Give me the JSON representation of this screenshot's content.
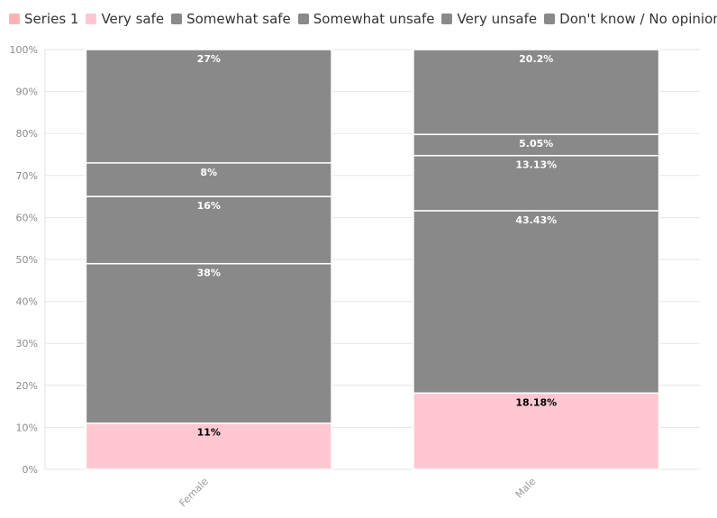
{
  "chart_data": {
    "type": "bar",
    "stacked": true,
    "categories": [
      "Female",
      "Male"
    ],
    "ylim": [
      0,
      100
    ],
    "y_ticks": [
      "0%",
      "10%",
      "20%",
      "30%",
      "40%",
      "50%",
      "60%",
      "70%",
      "80%",
      "90%",
      "100%"
    ],
    "grid": true,
    "legend_position": "top-left",
    "series": [
      {
        "name": "Series 1",
        "color": "#ffb3b3",
        "values": [
          0,
          0
        ],
        "labels": [
          "",
          ""
        ],
        "label_color": "#000000"
      },
      {
        "name": "Very safe",
        "color": "#ffc7d2",
        "values": [
          11,
          18.18
        ],
        "labels": [
          "11%",
          "18.18%"
        ],
        "label_color": "#000000"
      },
      {
        "name": "Somewhat safe",
        "color": "#898989",
        "values": [
          38,
          43.43
        ],
        "labels": [
          "38%",
          "43.43%"
        ],
        "label_color": "#ffffff"
      },
      {
        "name": "Somewhat unsafe",
        "color": "#898989",
        "values": [
          16,
          13.13
        ],
        "labels": [
          "16%",
          "13.13%"
        ],
        "label_color": "#ffffff"
      },
      {
        "name": "Very unsafe",
        "color": "#898989",
        "values": [
          8,
          5.05
        ],
        "labels": [
          "8%",
          "5.05%"
        ],
        "label_color": "#ffffff"
      },
      {
        "name": "Don't know / No opinion",
        "color": "#898989",
        "values": [
          27,
          20.2
        ],
        "labels": [
          "27%",
          "20.2%"
        ],
        "label_color": "#ffffff"
      }
    ]
  }
}
